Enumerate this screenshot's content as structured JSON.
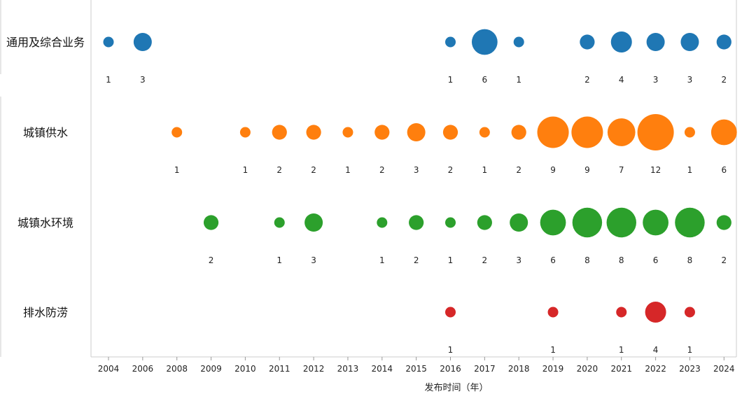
{
  "chart_data": {
    "type": "scatter",
    "xlabel": "发布时间（年）",
    "x": [
      2004,
      2006,
      2008,
      2009,
      2010,
      2011,
      2012,
      2013,
      2014,
      2015,
      2016,
      2017,
      2018,
      2019,
      2020,
      2021,
      2022,
      2023,
      2024
    ],
    "series": [
      {
        "name": "通用及综合业务",
        "color": "#1f77b4",
        "points": [
          [
            2004,
            1
          ],
          [
            2006,
            3
          ],
          [
            2016,
            1
          ],
          [
            2017,
            6
          ],
          [
            2018,
            1
          ],
          [
            2020,
            2
          ],
          [
            2021,
            4
          ],
          [
            2022,
            3
          ],
          [
            2023,
            3
          ],
          [
            2024,
            2
          ]
        ]
      },
      {
        "name": "城镇供水",
        "color": "#ff7f0e",
        "points": [
          [
            2008,
            1
          ],
          [
            2010,
            1
          ],
          [
            2011,
            2
          ],
          [
            2012,
            2
          ],
          [
            2013,
            1
          ],
          [
            2014,
            2
          ],
          [
            2015,
            3
          ],
          [
            2016,
            2
          ],
          [
            2017,
            1
          ],
          [
            2018,
            2
          ],
          [
            2019,
            9
          ],
          [
            2020,
            9
          ],
          [
            2021,
            7
          ],
          [
            2022,
            12
          ],
          [
            2023,
            1
          ],
          [
            2024,
            6
          ]
        ]
      },
      {
        "name": "城镇水环境",
        "color": "#2ca02c",
        "points": [
          [
            2009,
            2
          ],
          [
            2011,
            1
          ],
          [
            2012,
            3
          ],
          [
            2014,
            1
          ],
          [
            2015,
            2
          ],
          [
            2016,
            1
          ],
          [
            2017,
            2
          ],
          [
            2018,
            3
          ],
          [
            2019,
            6
          ],
          [
            2020,
            8
          ],
          [
            2021,
            8
          ],
          [
            2022,
            6
          ],
          [
            2023,
            8
          ],
          [
            2024,
            2
          ]
        ]
      },
      {
        "name": "排水防涝",
        "color": "#d62728",
        "points": [
          [
            2016,
            1
          ],
          [
            2019,
            1
          ],
          [
            2021,
            1
          ],
          [
            2022,
            4
          ],
          [
            2023,
            1
          ]
        ]
      }
    ]
  }
}
